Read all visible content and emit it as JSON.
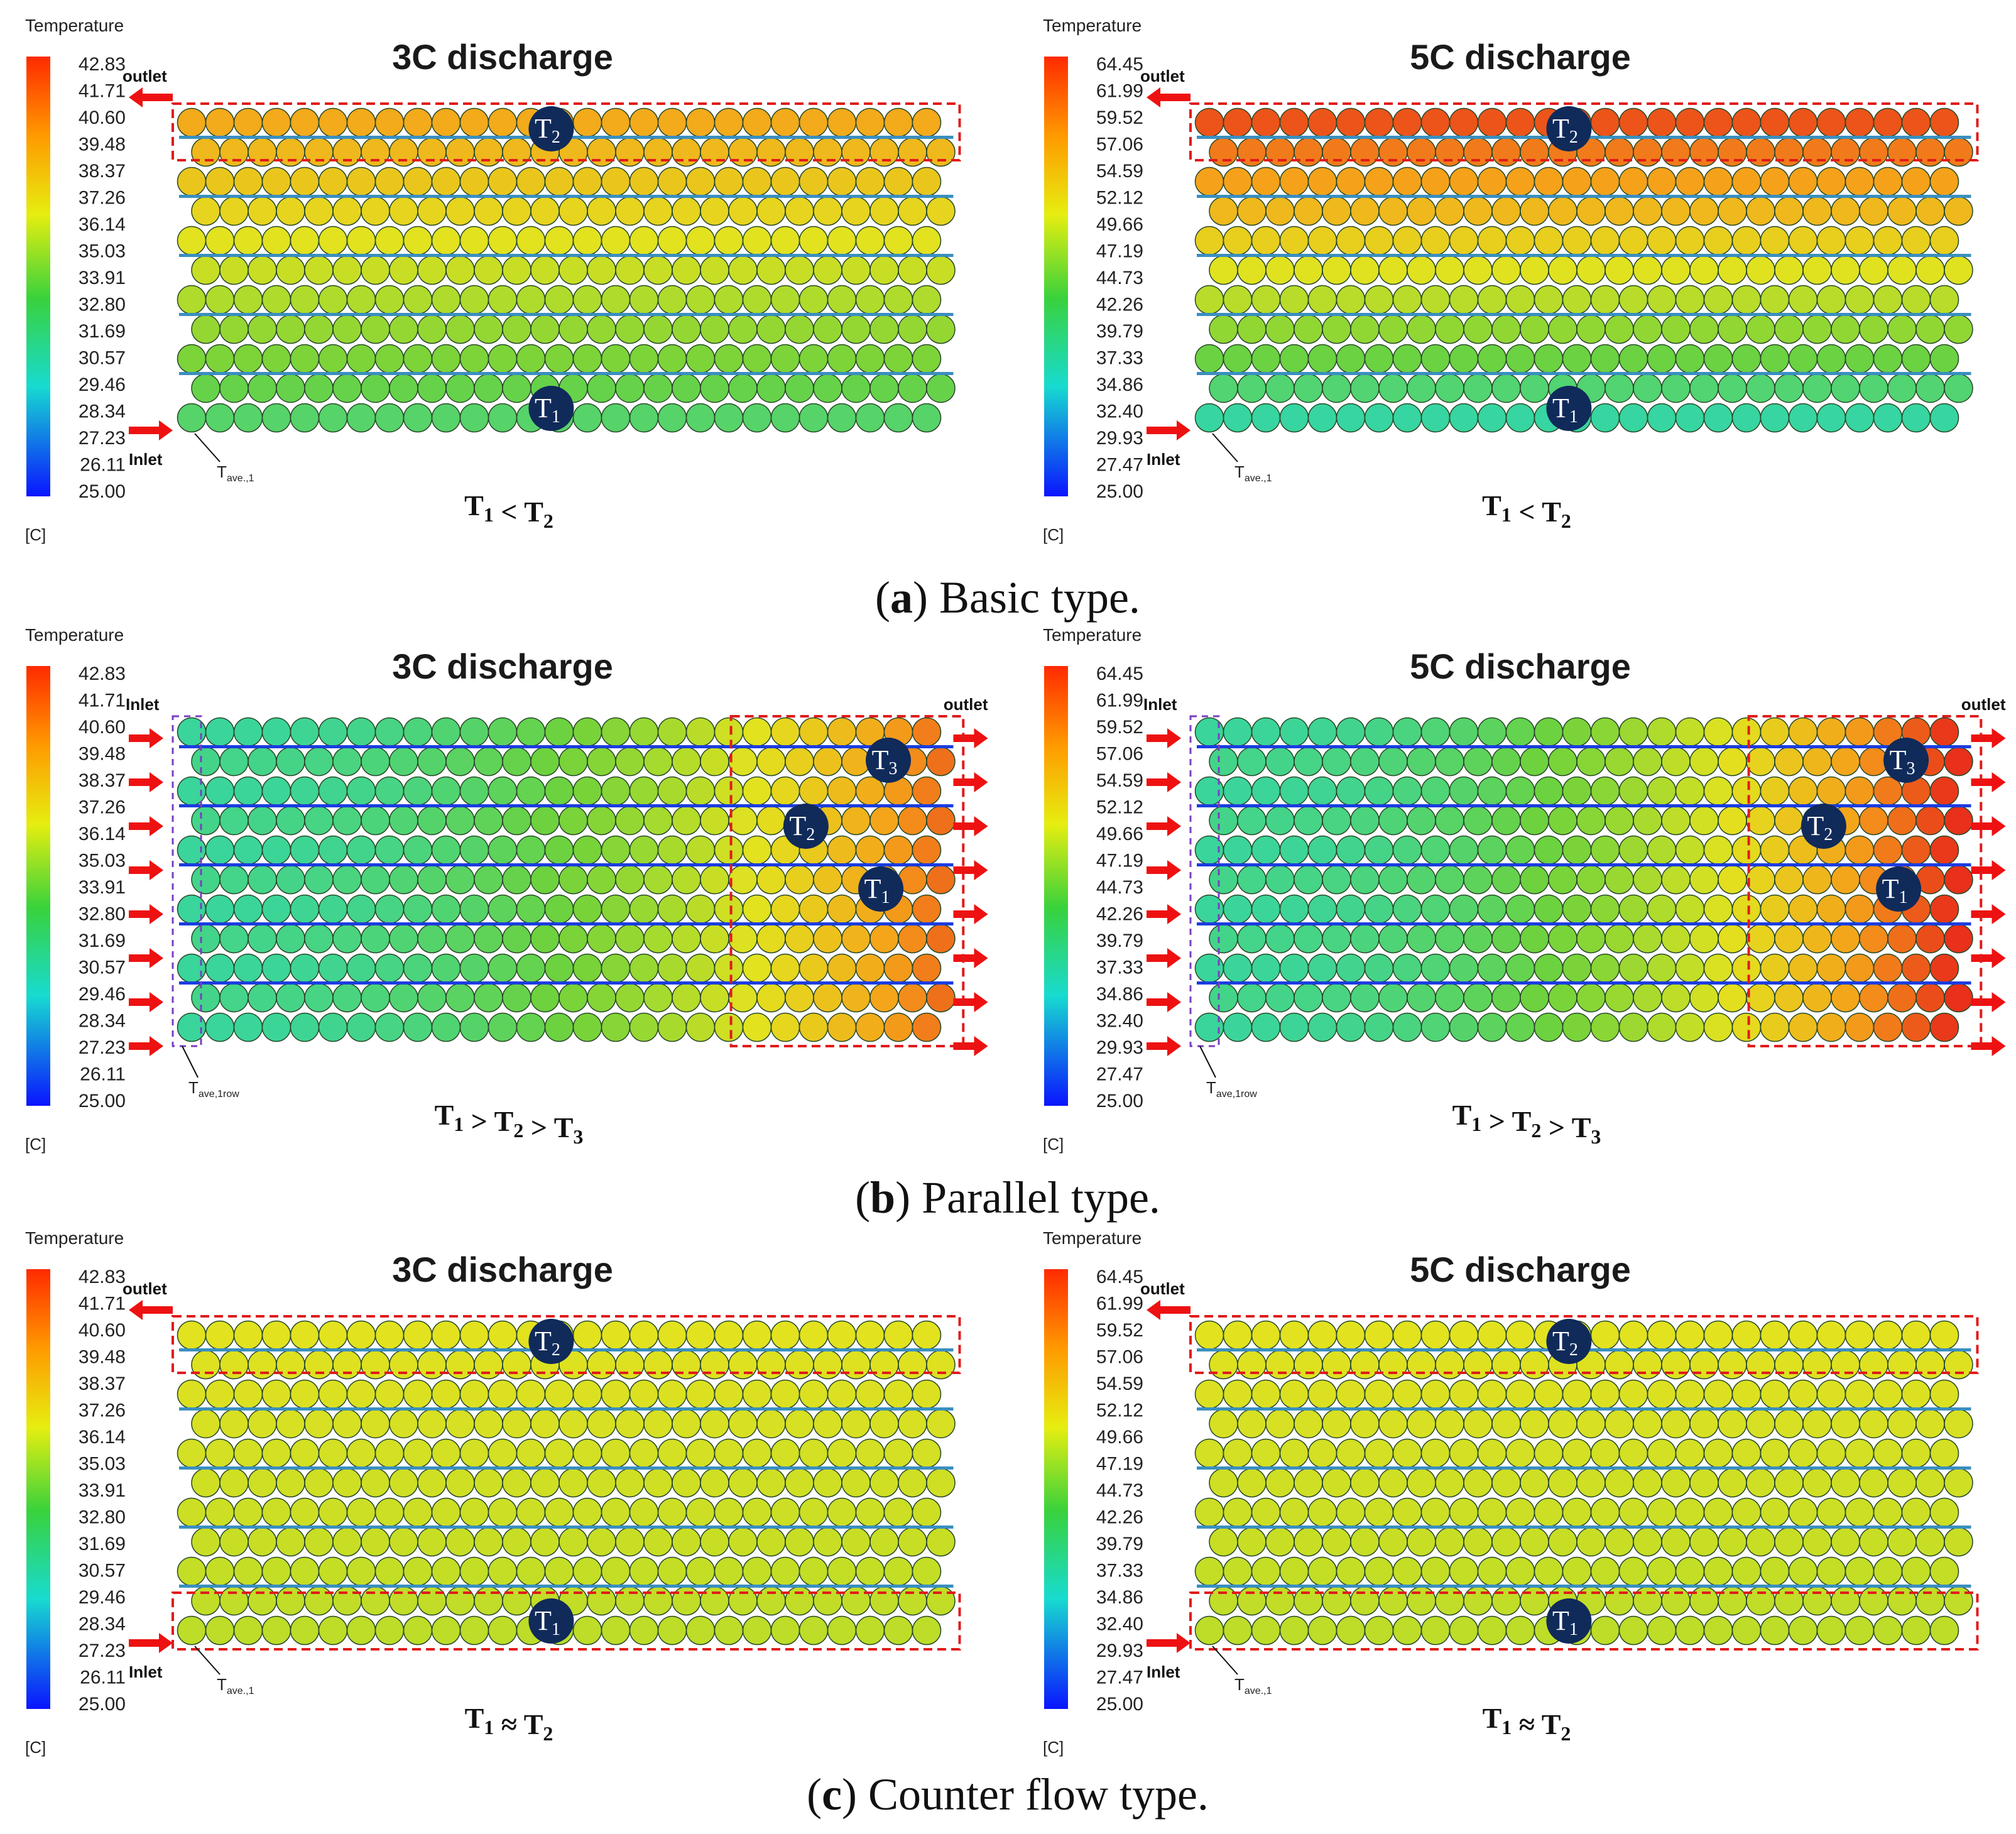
{
  "legend": {
    "title": "Temperature",
    "unit": "[C]",
    "ticks_3c": [
      "42.83",
      "41.71",
      "40.60",
      "39.48",
      "38.37",
      "37.26",
      "36.14",
      "35.03",
      "33.91",
      "32.80",
      "31.69",
      "30.57",
      "29.46",
      "28.34",
      "27.23",
      "26.11",
      "25.00"
    ],
    "ticks_5c": [
      "64.45",
      "61.99",
      "59.52",
      "57.06",
      "54.59",
      "52.12",
      "49.66",
      "47.19",
      "44.73",
      "42.26",
      "39.79",
      "37.33",
      "34.86",
      "32.40",
      "29.93",
      "27.47",
      "25.00"
    ]
  },
  "io_labels": {
    "inlet": "Inlet",
    "outlet": "outlet"
  },
  "probe_labels": {
    "tave_single": "T",
    "tave_single_sub": "ave.,1",
    "tave_row_sub": "ave,1row"
  },
  "sections": [
    {
      "id": "a",
      "caption_letter": "a",
      "caption_text": "Basic type.",
      "panels": [
        {
          "title": "3C discharge",
          "relation": "T1 < T2",
          "scale": "3c"
        },
        {
          "title": "5C discharge",
          "relation": "T1 < T2",
          "scale": "5c"
        }
      ]
    },
    {
      "id": "b",
      "caption_letter": "b",
      "caption_text": "Parallel type.",
      "panels": [
        {
          "title": "3C discharge",
          "relation": "T1 > T2 > T3",
          "scale": "3c"
        },
        {
          "title": "5C discharge",
          "relation": "T1 > T2 > T3",
          "scale": "5c"
        }
      ]
    },
    {
      "id": "c",
      "caption_letter": "c",
      "caption_text": "Counter flow type.",
      "panels": [
        {
          "title": "3C discharge",
          "relation": "T1 ≈ T2",
          "scale": "3c"
        },
        {
          "title": "5C discharge",
          "relation": "T1 ≈ T2",
          "scale": "5c"
        }
      ]
    }
  ],
  "colors": {
    "hot": "#e8301a",
    "warm": "#f5a21a",
    "mid": "#e2e21f",
    "green": "#6ed23c",
    "cool": "#22d6c8",
    "cold": "#1b3de0",
    "badge": "#102a5a",
    "arrow": "#ee1111",
    "dash": "#e01b1b"
  }
}
